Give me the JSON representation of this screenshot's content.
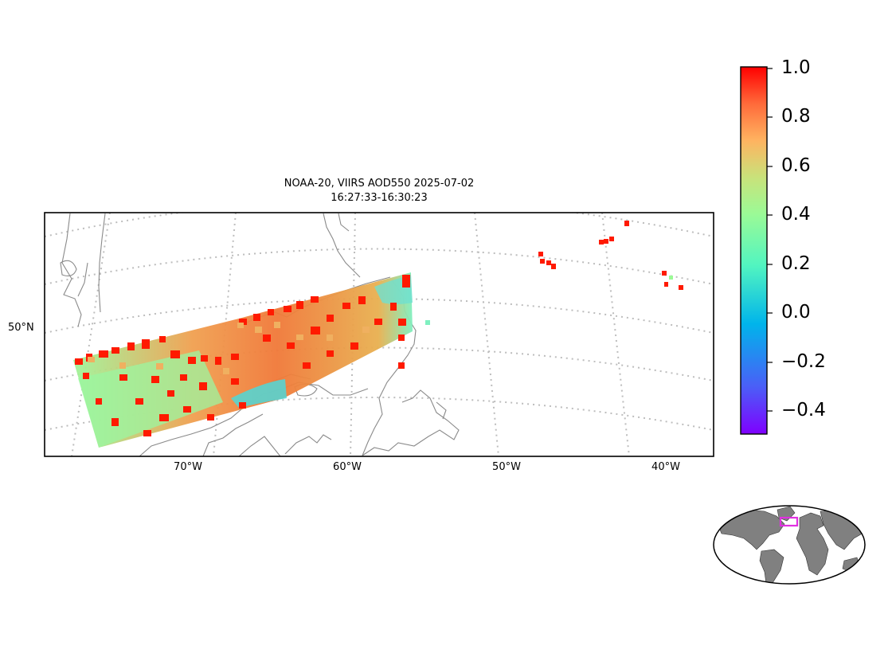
{
  "map": {
    "title_line1": "NOAA-20, VIIRS AOD550 2025-07-02",
    "title_line2": "16:27:33-16:30:23",
    "lon_labels": [
      "70°W",
      "60°W",
      "50°W",
      "40°W"
    ],
    "lat_labels": [
      "50°N"
    ],
    "colors": {
      "coast": "#8a8a8a",
      "grid": "#bdbdbd",
      "frame": "#000000",
      "inset_box": "#e030e0",
      "inset_land": "#808080"
    }
  },
  "colorbar": {
    "colormap": "rainbow",
    "range": [
      -0.5,
      1.0
    ],
    "ticks": [
      "1.0",
      "0.8",
      "0.6",
      "0.4",
      "0.2",
      "0.0",
      "−0.2",
      "−0.4"
    ]
  },
  "inset": {
    "name": "global-locator-map"
  }
}
